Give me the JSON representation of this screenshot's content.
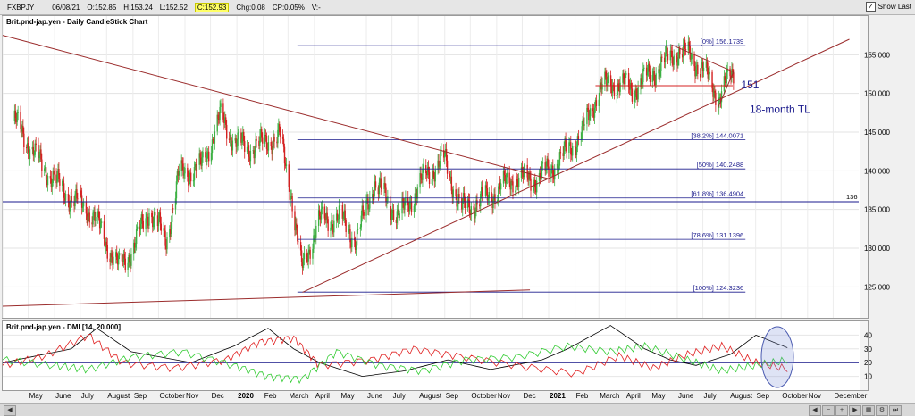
{
  "header": {
    "symbol": "FXBPJY",
    "date": "06/08/21",
    "open": "O:152.85",
    "high": "H:153.24",
    "low": "L:152.52",
    "close": "C:152.93",
    "change": "Chg:0.08",
    "change_pct": "CP:0.05%",
    "extra": "V:-",
    "show_last": "Show Last"
  },
  "colors": {
    "up": "#3cb043",
    "down": "#d42020",
    "fib": "#1a1a8c",
    "trend": "#9b2c2c",
    "dmi_minus": "#e02020",
    "dmi_plus": "#33cc33",
    "adx": "#000000"
  },
  "chart_data": [
    {
      "type": "candlestick",
      "title": "Brit.pnd-jap.yen - Daily CandleStick Chart",
      "ylim": [
        121,
        160
      ],
      "yticks": [
        125.0,
        130.0,
        135.0,
        140.0,
        145.0,
        150.0,
        155.0
      ],
      "ytick_labels": [
        "125.000",
        "130.000",
        "135.000",
        "140.000",
        "145.000",
        "150.000",
        "155.000"
      ],
      "fib_levels": [
        {
          "label": "[0%] 156.1739",
          "value": 156.1739
        },
        {
          "label": "[38.2%] 144.0071",
          "value": 144.0071
        },
        {
          "label": "[50%] 140.2488",
          "value": 140.2488
        },
        {
          "label": "[61.8%] 136.4904",
          "value": 136.4904
        },
        {
          "label": "[78.6%] 131.1396",
          "value": 131.1396
        },
        {
          "label": "[100%] 124.3236",
          "value": 124.3236
        }
      ],
      "annotations": [
        {
          "text": "151",
          "value": 151
        },
        {
          "text": "18-month TL",
          "value": 147.5
        },
        {
          "text": "136",
          "value": 136
        }
      ],
      "price_path": [
        {
          "date": "2019-04-15",
          "close": 146.5
        },
        {
          "date": "2019-05-15",
          "close": 141.0
        },
        {
          "date": "2019-06-15",
          "close": 137.0
        },
        {
          "date": "2019-07-15",
          "close": 134.5
        },
        {
          "date": "2019-08-15",
          "close": 127.5
        },
        {
          "date": "2019-09-01",
          "close": 130.0
        },
        {
          "date": "2019-09-20",
          "close": 135.0
        },
        {
          "date": "2019-10-10",
          "close": 131.0
        },
        {
          "date": "2019-10-25",
          "close": 139.5
        },
        {
          "date": "2019-11-20",
          "close": 140.5
        },
        {
          "date": "2019-12-13",
          "close": 147.0
        },
        {
          "date": "2019-12-31",
          "close": 143.5
        },
        {
          "date": "2020-01-20",
          "close": 143.0
        },
        {
          "date": "2020-02-20",
          "close": 144.5
        },
        {
          "date": "2020-03-05",
          "close": 137.0
        },
        {
          "date": "2020-03-17",
          "close": 127.0
        },
        {
          "date": "2020-04-05",
          "close": 133.5
        },
        {
          "date": "2020-05-01",
          "close": 134.0
        },
        {
          "date": "2020-05-20",
          "close": 131.0
        },
        {
          "date": "2020-06-10",
          "close": 138.5
        },
        {
          "date": "2020-07-10",
          "close": 134.0
        },
        {
          "date": "2020-08-10",
          "close": 139.5
        },
        {
          "date": "2020-09-01",
          "close": 141.5
        },
        {
          "date": "2020-09-20",
          "close": 135.0
        },
        {
          "date": "2020-10-20",
          "close": 136.5
        },
        {
          "date": "2020-11-20",
          "close": 139.0
        },
        {
          "date": "2020-12-20",
          "close": 139.0
        },
        {
          "date": "2021-01-15",
          "close": 141.5
        },
        {
          "date": "2021-02-10",
          "close": 145.0
        },
        {
          "date": "2021-03-01",
          "close": 150.5
        },
        {
          "date": "2021-03-20",
          "close": 151.5
        },
        {
          "date": "2021-04-10",
          "close": 150.5
        },
        {
          "date": "2021-05-01",
          "close": 152.5
        },
        {
          "date": "2021-06-01",
          "close": 155.5
        },
        {
          "date": "2021-06-15",
          "close": 155.0
        },
        {
          "date": "2021-07-01",
          "close": 153.0
        },
        {
          "date": "2021-07-20",
          "close": 149.5
        },
        {
          "date": "2021-08-06",
          "close": 152.93
        }
      ]
    },
    {
      "type": "line",
      "title": "Brit.pnd-jap.yen - DMI [14, 20.000]",
      "ylim": [
        0,
        50
      ],
      "yticks": [
        10,
        20,
        30,
        40
      ],
      "series": [
        {
          "key": "adx",
          "points": [
            [
              0,
              20
            ],
            [
              0.08,
              30
            ],
            [
              0.11,
              45
            ],
            [
              0.15,
              28
            ],
            [
              0.22,
              20
            ],
            [
              0.27,
              32
            ],
            [
              0.31,
              45
            ],
            [
              0.34,
              30
            ],
            [
              0.37,
              20
            ],
            [
              0.42,
              10
            ],
            [
              0.47,
              14
            ],
            [
              0.52,
              22
            ],
            [
              0.57,
              15
            ],
            [
              0.63,
              22
            ],
            [
              0.66,
              30
            ],
            [
              0.71,
              47
            ],
            [
              0.75,
              30
            ],
            [
              0.78,
              22
            ],
            [
              0.81,
              18
            ],
            [
              0.85,
              26
            ],
            [
              0.88,
              40
            ],
            [
              0.92,
              30
            ]
          ]
        },
        {
          "key": "minus",
          "points": [
            [
              0,
              18
            ],
            [
              0.05,
              25
            ],
            [
              0.1,
              40
            ],
            [
              0.14,
              20
            ],
            [
              0.2,
              16
            ],
            [
              0.26,
              22
            ],
            [
              0.3,
              35
            ],
            [
              0.34,
              38
            ],
            [
              0.37,
              18
            ],
            [
              0.43,
              22
            ],
            [
              0.48,
              30
            ],
            [
              0.53,
              25
            ],
            [
              0.6,
              18
            ],
            [
              0.67,
              12
            ],
            [
              0.72,
              25
            ],
            [
              0.76,
              16
            ],
            [
              0.8,
              26
            ],
            [
              0.84,
              32
            ],
            [
              0.88,
              20
            ],
            [
              0.92,
              15
            ]
          ]
        },
        {
          "key": "plus",
          "points": [
            [
              0,
              22
            ],
            [
              0.06,
              18
            ],
            [
              0.1,
              15
            ],
            [
              0.15,
              24
            ],
            [
              0.21,
              28
            ],
            [
              0.27,
              18
            ],
            [
              0.31,
              10
            ],
            [
              0.35,
              8
            ],
            [
              0.39,
              28
            ],
            [
              0.44,
              18
            ],
            [
              0.49,
              14
            ],
            [
              0.54,
              22
            ],
            [
              0.6,
              24
            ],
            [
              0.66,
              32
            ],
            [
              0.71,
              28
            ],
            [
              0.75,
              32
            ],
            [
              0.8,
              22
            ],
            [
              0.84,
              14
            ],
            [
              0.88,
              18
            ],
            [
              0.92,
              22
            ]
          ]
        }
      ]
    }
  ],
  "xaxis": {
    "labels": [
      "May",
      "June",
      "July",
      "August",
      "Sep",
      "October",
      "Nov",
      "Dec",
      "2020",
      "Feb",
      "March",
      "April",
      "May",
      "June",
      "July",
      "August",
      "Sep",
      "October",
      "Nov",
      "Dec",
      "2021",
      "Feb",
      "March",
      "April",
      "May",
      "June",
      "July",
      "August",
      "Sep",
      "October",
      "Nov",
      "December"
    ]
  }
}
